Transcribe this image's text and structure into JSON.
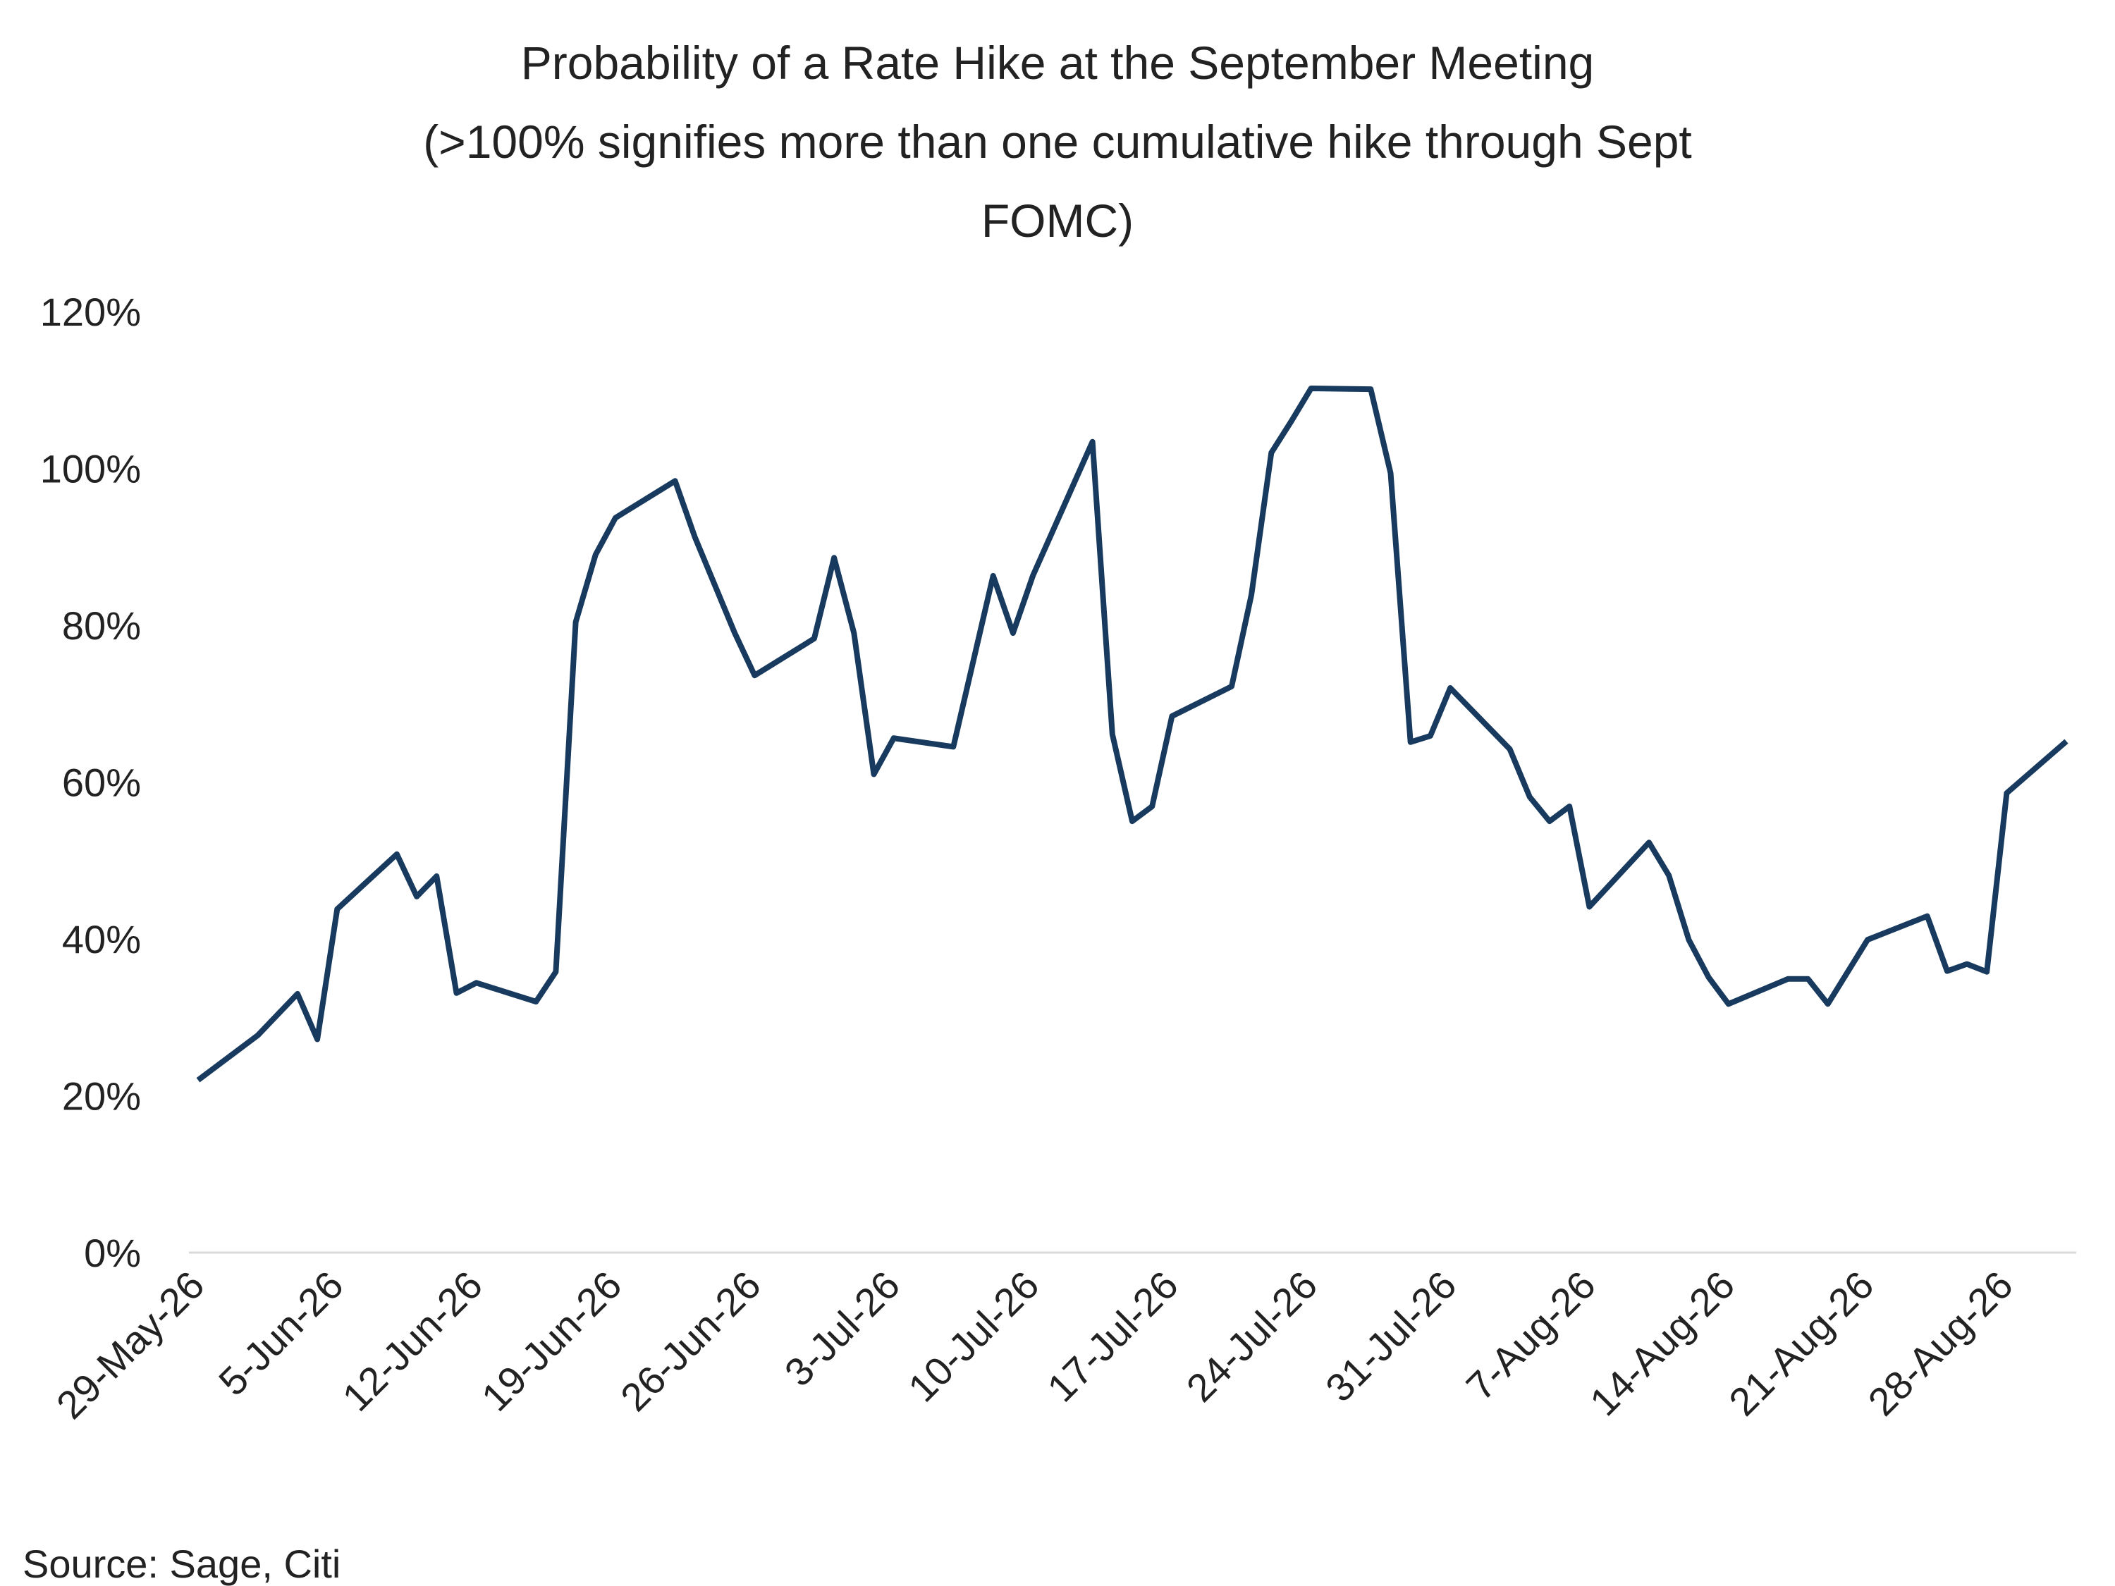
{
  "chart_data": {
    "type": "line",
    "title": [
      "Probability of a Rate Hike at the September Meeting",
      "(>100% signifies more than one cumulative hike through Sept",
      "FOMC)"
    ],
    "source": "Source: Sage, Citi",
    "color": "#173a5e",
    "x": [
      "2026-05-29",
      "2026-06-01",
      "2026-06-03",
      "2026-06-04",
      "2026-06-05",
      "2026-06-08",
      "2026-06-09",
      "2026-06-10",
      "2026-06-11",
      "2026-06-12",
      "2026-06-15",
      "2026-06-16",
      "2026-06-17",
      "2026-06-18",
      "2026-06-19",
      "2026-06-22",
      "2026-06-23",
      "2026-06-25",
      "2026-06-26",
      "2026-06-29",
      "2026-06-30",
      "2026-07-01",
      "2026-07-02",
      "2026-07-03",
      "2026-07-06",
      "2026-07-08",
      "2026-07-09",
      "2026-07-10",
      "2026-07-13",
      "2026-07-14",
      "2026-07-15",
      "2026-07-16",
      "2026-07-17",
      "2026-07-20",
      "2026-07-21",
      "2026-07-22",
      "2026-07-23",
      "2026-07-24",
      "2026-07-27",
      "2026-07-28",
      "2026-07-29",
      "2026-07-30",
      "2026-07-31",
      "2026-08-03",
      "2026-08-04",
      "2026-08-05",
      "2026-08-06",
      "2026-08-07",
      "2026-08-10",
      "2026-08-11",
      "2026-08-12",
      "2026-08-13",
      "2026-08-14",
      "2026-08-17",
      "2026-08-18",
      "2026-08-19",
      "2026-08-21",
      "2026-08-24",
      "2026-08-25",
      "2026-08-26",
      "2026-08-27",
      "2026-08-28",
      "2026-08-31"
    ],
    "values": [
      22,
      27.7,
      33,
      27.2,
      43.8,
      50.8,
      45.4,
      48,
      33.1,
      34.4,
      32,
      35.8,
      80.4,
      89,
      93.7,
      98.4,
      91.2,
      79,
      73.6,
      78.3,
      88.6,
      79,
      61,
      65.6,
      64.5,
      86.3,
      79,
      86.3,
      103.4,
      66.1,
      55,
      56.9,
      68.4,
      72.2,
      83.9,
      102,
      106,
      110.2,
      110.1,
      99.4,
      65.1,
      65.9,
      72,
      64.2,
      58.1,
      55,
      56.9,
      44.1,
      52.3,
      48.1,
      39.9,
      35.1,
      31.7,
      34.9,
      34.9,
      31.7,
      39.9,
      42.9,
      35.9,
      36.8,
      35.8,
      58.6,
      65.2
    ],
    "xlim": [
      "2026-05-29",
      "2026-08-31"
    ],
    "xticks": [
      {
        "value": "2026-05-29",
        "label": "29-May-26"
      },
      {
        "value": "2026-06-05",
        "label": "5-Jun-26"
      },
      {
        "value": "2026-06-12",
        "label": "12-Jun-26"
      },
      {
        "value": "2026-06-19",
        "label": "19-Jun-26"
      },
      {
        "value": "2026-06-26",
        "label": "26-Jun-26"
      },
      {
        "value": "2026-07-03",
        "label": "3-Jul-26"
      },
      {
        "value": "2026-07-10",
        "label": "10-Jul-26"
      },
      {
        "value": "2026-07-17",
        "label": "17-Jul-26"
      },
      {
        "value": "2026-07-24",
        "label": "24-Jul-26"
      },
      {
        "value": "2026-07-31",
        "label": "31-Jul-26"
      },
      {
        "value": "2026-08-07",
        "label": "7-Aug-26"
      },
      {
        "value": "2026-08-14",
        "label": "14-Aug-26"
      },
      {
        "value": "2026-08-21",
        "label": "21-Aug-26"
      },
      {
        "value": "2026-08-28",
        "label": "28-Aug-26"
      }
    ],
    "ylim": [
      0,
      120
    ],
    "yticks": [
      {
        "value": 0,
        "label": "0%"
      },
      {
        "value": 20,
        "label": "20%"
      },
      {
        "value": 40,
        "label": "40%"
      },
      {
        "value": 60,
        "label": "60%"
      },
      {
        "value": 80,
        "label": "80%"
      },
      {
        "value": 100,
        "label": "100%"
      },
      {
        "value": 120,
        "label": "120%"
      }
    ],
    "grid": false
  }
}
